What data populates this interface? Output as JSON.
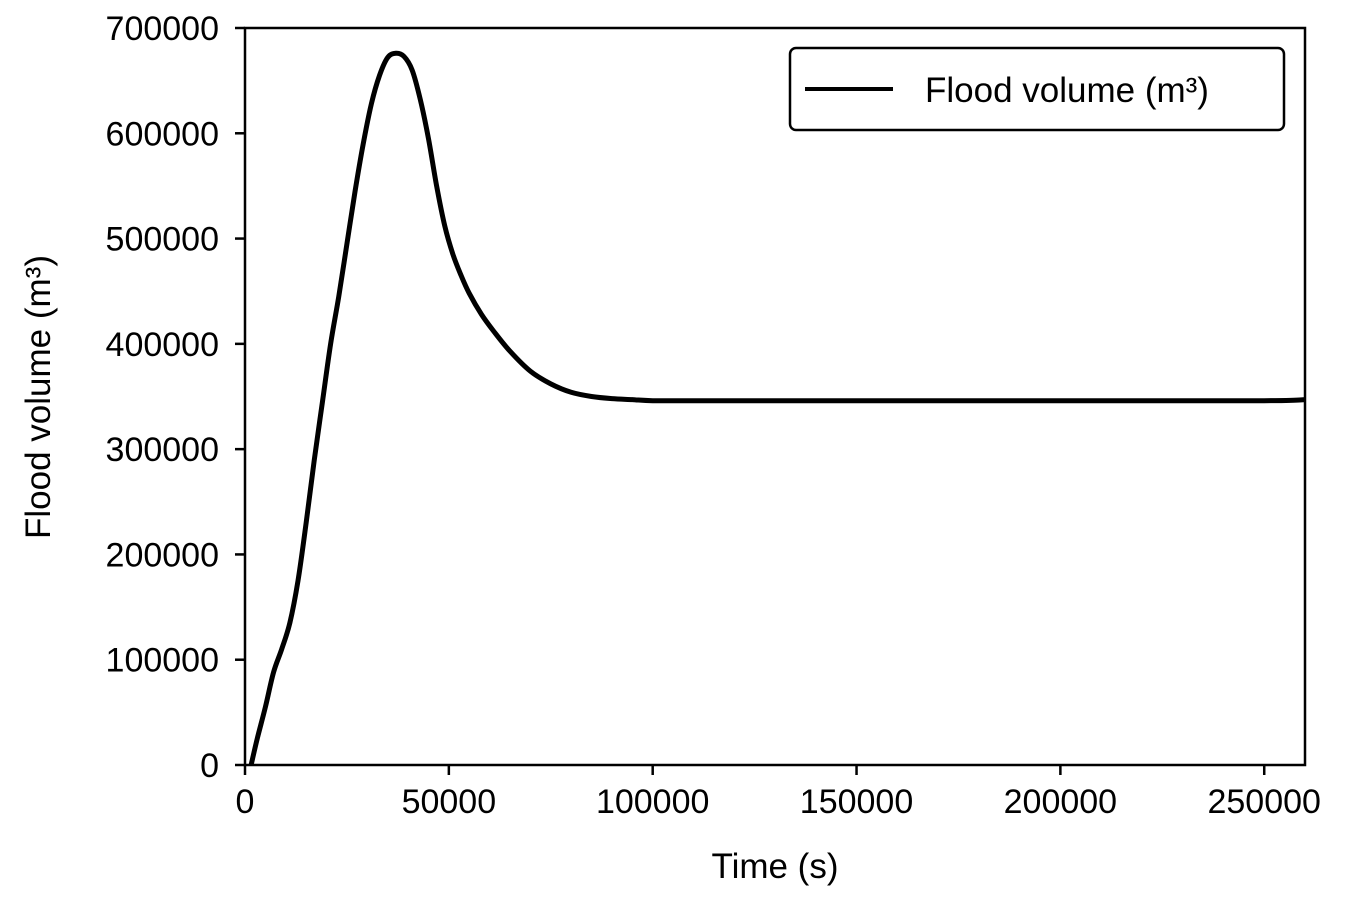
{
  "chart_data": {
    "type": "line",
    "xlabel": "Time (s)",
    "ylabel": "Flood volume (m³)",
    "xlim": [
      0,
      260000
    ],
    "ylim": [
      0,
      700000
    ],
    "x_ticks": [
      "0",
      "50000",
      "100000",
      "150000",
      "200000",
      "250000"
    ],
    "y_ticks": [
      "0",
      "100000",
      "200000",
      "300000",
      "400000",
      "500000",
      "600000",
      "700000"
    ],
    "grid": false,
    "legend_position": "top-right",
    "series": [
      {
        "name": "Flood volume (m³)",
        "color": "#000000",
        "x": [
          1500,
          3000,
          5000,
          7000,
          9000,
          11000,
          13000,
          15000,
          17000,
          19000,
          21000,
          23000,
          25000,
          27000,
          29000,
          31000,
          33000,
          35000,
          37000,
          39000,
          41000,
          43000,
          45000,
          47000,
          49000,
          51000,
          53000,
          55000,
          58000,
          61000,
          65000,
          70000,
          75000,
          80000,
          85000,
          90000,
          95000,
          100000,
          110000,
          120000,
          150000,
          200000,
          250000,
          260000
        ],
        "y": [
          0,
          25000,
          55000,
          88000,
          110000,
          135000,
          175000,
          230000,
          290000,
          345000,
          400000,
          445000,
          495000,
          545000,
          590000,
          628000,
          655000,
          672000,
          676000,
          673000,
          660000,
          632000,
          595000,
          550000,
          512000,
          485000,
          465000,
          448000,
          428000,
          412000,
          393000,
          374000,
          362000,
          354000,
          350000,
          348000,
          347000,
          346000,
          346000,
          346000,
          346000,
          346000,
          346000,
          347000
        ]
      }
    ]
  }
}
